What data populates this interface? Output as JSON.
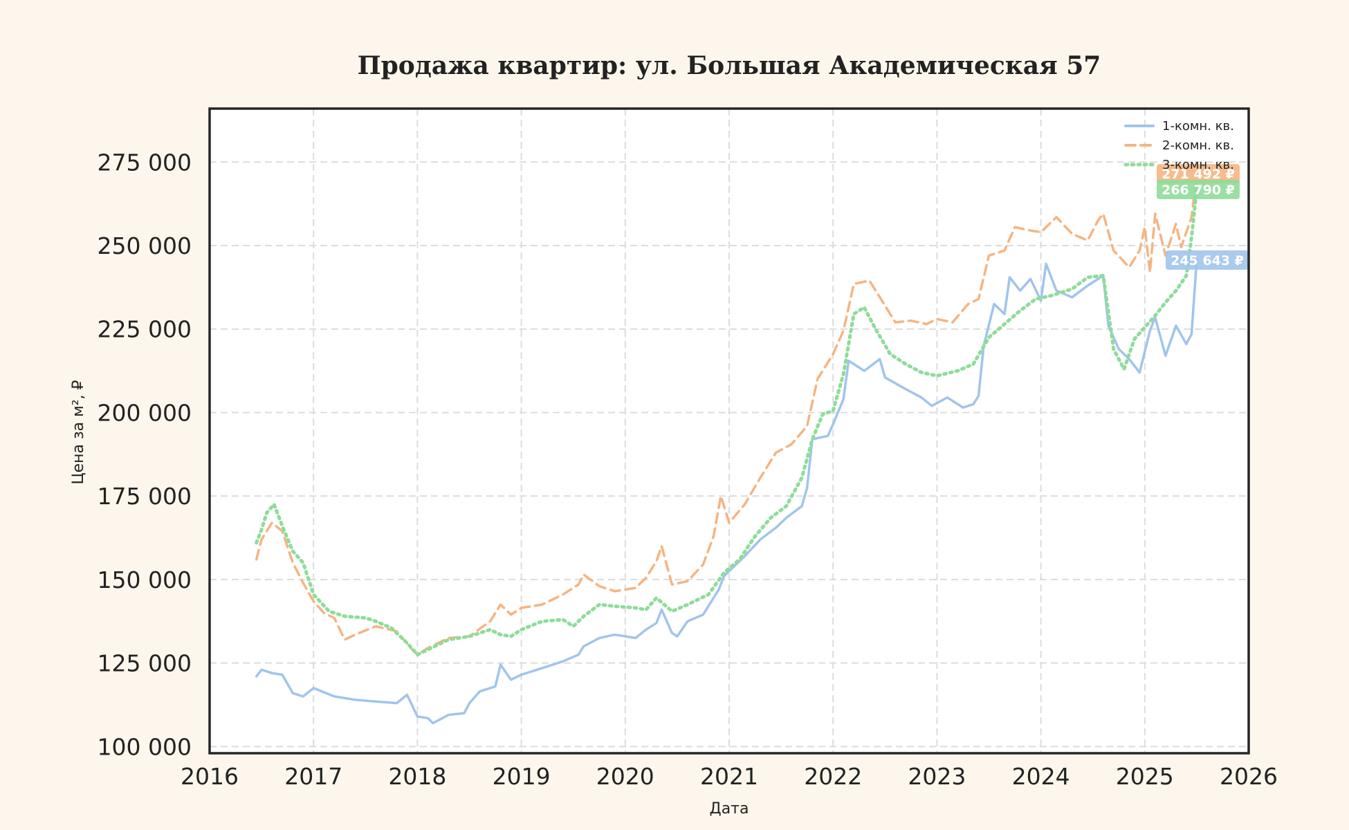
{
  "chart_data": {
    "type": "line",
    "title": "Продажа квартир: ул. Большая Академическая 57",
    "xlabel": "Дата",
    "ylabel": "Цена за м², ₽",
    "xlim": [
      2016.0,
      2026.0
    ],
    "ylim": [
      98000,
      291000
    ],
    "x_ticks": [
      "2016",
      "2017",
      "2018",
      "2019",
      "2020",
      "2021",
      "2022",
      "2023",
      "2024",
      "2025",
      "2026"
    ],
    "y_ticks": [
      {
        "value": 100000,
        "label": "100 000"
      },
      {
        "value": 125000,
        "label": "125 000"
      },
      {
        "value": 150000,
        "label": "150 000"
      },
      {
        "value": 175000,
        "label": "175 000"
      },
      {
        "value": 200000,
        "label": "200 000"
      },
      {
        "value": 225000,
        "label": "225 000"
      },
      {
        "value": 250000,
        "label": "250 000"
      },
      {
        "value": 275000,
        "label": "275 000"
      }
    ],
    "grid": true,
    "legend_position": "top-right",
    "series": [
      {
        "name": "1-комн. кв.",
        "color": "#a1c4ec",
        "style": "solid",
        "end_label": "245 643 ₽",
        "end_value": 245643,
        "points": [
          [
            2016.45,
            121000
          ],
          [
            2016.5,
            123000
          ],
          [
            2016.6,
            122000
          ],
          [
            2016.7,
            121500
          ],
          [
            2016.8,
            116000
          ],
          [
            2016.9,
            115000
          ],
          [
            2017.0,
            117500
          ],
          [
            2017.2,
            115000
          ],
          [
            2017.4,
            114000
          ],
          [
            2017.6,
            113500
          ],
          [
            2017.8,
            113000
          ],
          [
            2017.9,
            115500
          ],
          [
            2018.0,
            109000
          ],
          [
            2018.1,
            108500
          ],
          [
            2018.15,
            107000
          ],
          [
            2018.3,
            109500
          ],
          [
            2018.45,
            110000
          ],
          [
            2018.5,
            113000
          ],
          [
            2018.6,
            116500
          ],
          [
            2018.75,
            118000
          ],
          [
            2018.8,
            124500
          ],
          [
            2018.9,
            120000
          ],
          [
            2019.0,
            121500
          ],
          [
            2019.2,
            123500
          ],
          [
            2019.4,
            125500
          ],
          [
            2019.55,
            127500
          ],
          [
            2019.6,
            130000
          ],
          [
            2019.75,
            132500
          ],
          [
            2019.9,
            133500
          ],
          [
            2020.1,
            132500
          ],
          [
            2020.2,
            135000
          ],
          [
            2020.3,
            137000
          ],
          [
            2020.35,
            141000
          ],
          [
            2020.45,
            134000
          ],
          [
            2020.5,
            133000
          ],
          [
            2020.6,
            137500
          ],
          [
            2020.75,
            139500
          ],
          [
            2020.9,
            147000
          ],
          [
            2020.95,
            151000
          ],
          [
            2021.0,
            152500
          ],
          [
            2021.15,
            157000
          ],
          [
            2021.3,
            162000
          ],
          [
            2021.45,
            165500
          ],
          [
            2021.55,
            168500
          ],
          [
            2021.7,
            172000
          ],
          [
            2021.75,
            177500
          ],
          [
            2021.8,
            192000
          ],
          [
            2021.95,
            193000
          ],
          [
            2022.0,
            196500
          ],
          [
            2022.1,
            204000
          ],
          [
            2022.15,
            215500
          ],
          [
            2022.3,
            212500
          ],
          [
            2022.45,
            216000
          ],
          [
            2022.5,
            210500
          ],
          [
            2022.7,
            207000
          ],
          [
            2022.85,
            204500
          ],
          [
            2022.95,
            202000
          ],
          [
            2023.1,
            204500
          ],
          [
            2023.25,
            201500
          ],
          [
            2023.35,
            202500
          ],
          [
            2023.4,
            205000
          ],
          [
            2023.45,
            220000
          ],
          [
            2023.55,
            232500
          ],
          [
            2023.65,
            229500
          ],
          [
            2023.7,
            240500
          ],
          [
            2023.8,
            236500
          ],
          [
            2023.9,
            240000
          ],
          [
            2024.0,
            233500
          ],
          [
            2024.05,
            244500
          ],
          [
            2024.15,
            236500
          ],
          [
            2024.3,
            234500
          ],
          [
            2024.45,
            238000
          ],
          [
            2024.6,
            241000
          ],
          [
            2024.65,
            226000
          ],
          [
            2024.75,
            219000
          ],
          [
            2024.85,
            216000
          ],
          [
            2024.95,
            212000
          ],
          [
            2025.05,
            224500
          ],
          [
            2025.1,
            228500
          ],
          [
            2025.2,
            217000
          ],
          [
            2025.3,
            226000
          ],
          [
            2025.4,
            220500
          ],
          [
            2025.45,
            223500
          ],
          [
            2025.5,
            245643
          ]
        ]
      },
      {
        "name": "2-комн. кв.",
        "color": "#f5b482",
        "style": "dashed",
        "end_label": "271 492 ₽",
        "end_value": 271492,
        "points": [
          [
            2016.45,
            156000
          ],
          [
            2016.5,
            162000
          ],
          [
            2016.6,
            167000
          ],
          [
            2016.7,
            164500
          ],
          [
            2016.8,
            155000
          ],
          [
            2016.9,
            149000
          ],
          [
            2017.0,
            143500
          ],
          [
            2017.1,
            140000
          ],
          [
            2017.2,
            138500
          ],
          [
            2017.3,
            132000
          ],
          [
            2017.4,
            133500
          ],
          [
            2017.6,
            136000
          ],
          [
            2017.8,
            134500
          ],
          [
            2017.95,
            129000
          ],
          [
            2018.0,
            127500
          ],
          [
            2018.1,
            129500
          ],
          [
            2018.3,
            132500
          ],
          [
            2018.5,
            133000
          ],
          [
            2018.7,
            137500
          ],
          [
            2018.8,
            142500
          ],
          [
            2018.9,
            139500
          ],
          [
            2019.0,
            141500
          ],
          [
            2019.2,
            142500
          ],
          [
            2019.4,
            145500
          ],
          [
            2019.55,
            148500
          ],
          [
            2019.6,
            151500
          ],
          [
            2019.75,
            148000
          ],
          [
            2019.9,
            146500
          ],
          [
            2020.1,
            147500
          ],
          [
            2020.2,
            150500
          ],
          [
            2020.3,
            155500
          ],
          [
            2020.35,
            160000
          ],
          [
            2020.45,
            148500
          ],
          [
            2020.6,
            149500
          ],
          [
            2020.75,
            154500
          ],
          [
            2020.85,
            163000
          ],
          [
            2020.92,
            175000
          ],
          [
            2021.0,
            167000
          ],
          [
            2021.15,
            172500
          ],
          [
            2021.3,
            180500
          ],
          [
            2021.45,
            188000
          ],
          [
            2021.6,
            190500
          ],
          [
            2021.75,
            196000
          ],
          [
            2021.85,
            210000
          ],
          [
            2022.0,
            217500
          ],
          [
            2022.1,
            224500
          ],
          [
            2022.2,
            238500
          ],
          [
            2022.35,
            239500
          ],
          [
            2022.45,
            234500
          ],
          [
            2022.6,
            227000
          ],
          [
            2022.75,
            227500
          ],
          [
            2022.9,
            226500
          ],
          [
            2023.0,
            228000
          ],
          [
            2023.15,
            227000
          ],
          [
            2023.3,
            232500
          ],
          [
            2023.4,
            234000
          ],
          [
            2023.5,
            247000
          ],
          [
            2023.65,
            248500
          ],
          [
            2023.75,
            255500
          ],
          [
            2023.9,
            254500
          ],
          [
            2024.0,
            254000
          ],
          [
            2024.15,
            258500
          ],
          [
            2024.3,
            253500
          ],
          [
            2024.45,
            251500
          ],
          [
            2024.55,
            257500
          ],
          [
            2024.6,
            259500
          ],
          [
            2024.7,
            248500
          ],
          [
            2024.85,
            243500
          ],
          [
            2024.95,
            248500
          ],
          [
            2025.0,
            255500
          ],
          [
            2025.05,
            242000
          ],
          [
            2025.1,
            259500
          ],
          [
            2025.2,
            247000
          ],
          [
            2025.3,
            256500
          ],
          [
            2025.35,
            249500
          ],
          [
            2025.45,
            258500
          ],
          [
            2025.5,
            271492
          ]
        ]
      },
      {
        "name": "3-комн. кв.",
        "color": "#8fdc9a",
        "style": "dotted",
        "end_label": "266 790 ₽",
        "end_value": 266790,
        "points": [
          [
            2016.45,
            161000
          ],
          [
            2016.5,
            165000
          ],
          [
            2016.55,
            170000
          ],
          [
            2016.62,
            172500
          ],
          [
            2016.7,
            166000
          ],
          [
            2016.8,
            158500
          ],
          [
            2016.9,
            155000
          ],
          [
            2017.0,
            145500
          ],
          [
            2017.15,
            140500
          ],
          [
            2017.3,
            139000
          ],
          [
            2017.5,
            138500
          ],
          [
            2017.6,
            137500
          ],
          [
            2017.75,
            135500
          ],
          [
            2017.9,
            131000
          ],
          [
            2018.0,
            127500
          ],
          [
            2018.1,
            129000
          ],
          [
            2018.3,
            132000
          ],
          [
            2018.5,
            133000
          ],
          [
            2018.7,
            135000
          ],
          [
            2018.8,
            133500
          ],
          [
            2018.9,
            133000
          ],
          [
            2019.0,
            135000
          ],
          [
            2019.2,
            137500
          ],
          [
            2019.4,
            138000
          ],
          [
            2019.5,
            136000
          ],
          [
            2019.6,
            139000
          ],
          [
            2019.75,
            142500
          ],
          [
            2019.9,
            142000
          ],
          [
            2020.1,
            141500
          ],
          [
            2020.2,
            141000
          ],
          [
            2020.3,
            144500
          ],
          [
            2020.45,
            140500
          ],
          [
            2020.6,
            142500
          ],
          [
            2020.8,
            145500
          ],
          [
            2020.95,
            152000
          ],
          [
            2021.1,
            156000
          ],
          [
            2021.25,
            163000
          ],
          [
            2021.4,
            168500
          ],
          [
            2021.55,
            172000
          ],
          [
            2021.7,
            180500
          ],
          [
            2021.8,
            192000
          ],
          [
            2021.9,
            199500
          ],
          [
            2022.0,
            200500
          ],
          [
            2022.1,
            211500
          ],
          [
            2022.2,
            229500
          ],
          [
            2022.3,
            231500
          ],
          [
            2022.4,
            225500
          ],
          [
            2022.55,
            217500
          ],
          [
            2022.7,
            214500
          ],
          [
            2022.85,
            212000
          ],
          [
            2023.0,
            211000
          ],
          [
            2023.2,
            212500
          ],
          [
            2023.35,
            214500
          ],
          [
            2023.5,
            222500
          ],
          [
            2023.65,
            226500
          ],
          [
            2023.8,
            230500
          ],
          [
            2023.95,
            234000
          ],
          [
            2024.1,
            235000
          ],
          [
            2024.3,
            237000
          ],
          [
            2024.45,
            240500
          ],
          [
            2024.6,
            241000
          ],
          [
            2024.7,
            219000
          ],
          [
            2024.8,
            213000
          ],
          [
            2024.9,
            222000
          ],
          [
            2025.0,
            225500
          ],
          [
            2025.1,
            229000
          ],
          [
            2025.2,
            233000
          ],
          [
            2025.3,
            236500
          ],
          [
            2025.4,
            241000
          ],
          [
            2025.45,
            252500
          ],
          [
            2025.5,
            266790
          ]
        ]
      }
    ]
  }
}
